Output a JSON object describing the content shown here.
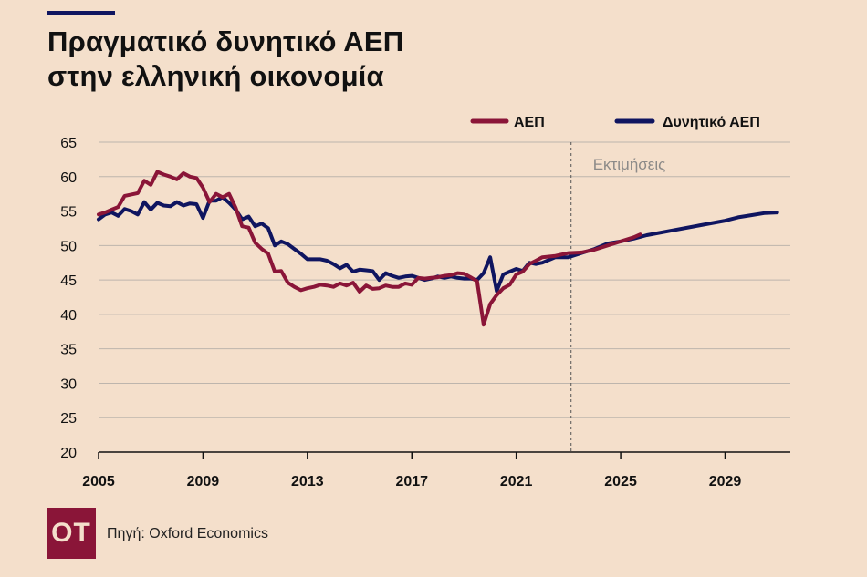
{
  "title_lines": [
    "Πραγματικό δυνητικό ΑΕΠ",
    "στην ελληνική οικονομία"
  ],
  "source": "Πηγή: Oxford Economics",
  "logo_text": "ΟΤ",
  "colors": {
    "background": "#f4dfcb",
    "gdp": "#8a1538",
    "potential": "#0f1560",
    "grid": "#bdb5ad",
    "annotation": "#8c8a88"
  },
  "chart_data": {
    "type": "line",
    "title": "Πραγματικό δυνητικό ΑΕΠ στην ελληνική οικονομία",
    "xlabel": "",
    "ylabel": "",
    "xlim": [
      2005,
      2031.5
    ],
    "ylim": [
      20,
      65
    ],
    "yticks": [
      20,
      25,
      30,
      35,
      40,
      45,
      50,
      55,
      60,
      65
    ],
    "xticks": [
      2005,
      2009,
      2013,
      2017,
      2021,
      2025,
      2029
    ],
    "grid": "horizontal",
    "legend_position": "top-right",
    "annotation": {
      "text": "Εκτιμήσεις",
      "x": 2023.1
    },
    "series": [
      {
        "name": "ΑΕΠ",
        "color": "#8a1538",
        "points": [
          [
            2005.0,
            54.5
          ],
          [
            2005.25,
            54.8
          ],
          [
            2005.5,
            55.2
          ],
          [
            2005.75,
            55.6
          ],
          [
            2006.0,
            57.2
          ],
          [
            2006.25,
            57.4
          ],
          [
            2006.5,
            57.6
          ],
          [
            2006.75,
            59.4
          ],
          [
            2007.0,
            58.8
          ],
          [
            2007.25,
            60.7
          ],
          [
            2007.5,
            60.3
          ],
          [
            2007.75,
            60.0
          ],
          [
            2008.0,
            59.6
          ],
          [
            2008.25,
            60.5
          ],
          [
            2008.5,
            60.0
          ],
          [
            2008.75,
            59.8
          ],
          [
            2009.0,
            58.4
          ],
          [
            2009.25,
            56.3
          ],
          [
            2009.5,
            57.5
          ],
          [
            2009.75,
            57.0
          ],
          [
            2010.0,
            57.5
          ],
          [
            2010.25,
            55.5
          ],
          [
            2010.5,
            52.8
          ],
          [
            2010.75,
            52.6
          ],
          [
            2011.0,
            50.4
          ],
          [
            2011.25,
            49.5
          ],
          [
            2011.5,
            48.8
          ],
          [
            2011.75,
            46.2
          ],
          [
            2012.0,
            46.3
          ],
          [
            2012.25,
            44.6
          ],
          [
            2012.5,
            44.0
          ],
          [
            2012.75,
            43.5
          ],
          [
            2013.0,
            43.8
          ],
          [
            2013.25,
            44.0
          ],
          [
            2013.5,
            44.3
          ],
          [
            2013.75,
            44.2
          ],
          [
            2014.0,
            44.0
          ],
          [
            2014.25,
            44.5
          ],
          [
            2014.5,
            44.2
          ],
          [
            2014.75,
            44.6
          ],
          [
            2015.0,
            43.3
          ],
          [
            2015.25,
            44.2
          ],
          [
            2015.5,
            43.7
          ],
          [
            2015.75,
            43.8
          ],
          [
            2016.0,
            44.2
          ],
          [
            2016.25,
            44.0
          ],
          [
            2016.5,
            44.0
          ],
          [
            2016.75,
            44.5
          ],
          [
            2017.0,
            44.3
          ],
          [
            2017.25,
            45.3
          ],
          [
            2017.5,
            45.2
          ],
          [
            2017.75,
            45.3
          ],
          [
            2018.0,
            45.4
          ],
          [
            2018.25,
            45.6
          ],
          [
            2018.5,
            45.7
          ],
          [
            2018.75,
            46.0
          ],
          [
            2019.0,
            45.9
          ],
          [
            2019.25,
            45.4
          ],
          [
            2019.5,
            44.8
          ],
          [
            2019.75,
            38.5
          ],
          [
            2020.0,
            41.5
          ],
          [
            2020.25,
            42.8
          ],
          [
            2020.5,
            43.8
          ],
          [
            2020.75,
            44.3
          ],
          [
            2021.0,
            45.8
          ],
          [
            2021.25,
            46.2
          ],
          [
            2021.5,
            47.3
          ],
          [
            2021.75,
            47.8
          ],
          [
            2022.0,
            48.3
          ],
          [
            2022.5,
            48.5
          ],
          [
            2023.0,
            48.9
          ],
          [
            2023.5,
            49.0
          ],
          [
            2024.0,
            49.4
          ],
          [
            2024.5,
            50.0
          ],
          [
            2025.0,
            50.6
          ],
          [
            2025.5,
            51.2
          ],
          [
            2025.75,
            51.6
          ]
        ]
      },
      {
        "name": "Δυνητικό ΑΕΠ",
        "color": "#0f1560",
        "points": [
          [
            2005.0,
            53.8
          ],
          [
            2005.25,
            54.5
          ],
          [
            2005.5,
            54.8
          ],
          [
            2005.75,
            54.3
          ],
          [
            2006.0,
            55.3
          ],
          [
            2006.25,
            55.0
          ],
          [
            2006.5,
            54.5
          ],
          [
            2006.75,
            56.3
          ],
          [
            2007.0,
            55.2
          ],
          [
            2007.25,
            56.2
          ],
          [
            2007.5,
            55.8
          ],
          [
            2007.75,
            55.7
          ],
          [
            2008.0,
            56.3
          ],
          [
            2008.25,
            55.8
          ],
          [
            2008.5,
            56.1
          ],
          [
            2008.75,
            56.0
          ],
          [
            2009.0,
            54.0
          ],
          [
            2009.25,
            56.5
          ],
          [
            2009.5,
            56.5
          ],
          [
            2009.75,
            57.0
          ],
          [
            2010.0,
            56.2
          ],
          [
            2010.25,
            55.2
          ],
          [
            2010.5,
            53.8
          ],
          [
            2010.75,
            54.2
          ],
          [
            2011.0,
            52.8
          ],
          [
            2011.25,
            53.2
          ],
          [
            2011.5,
            52.5
          ],
          [
            2011.75,
            50.0
          ],
          [
            2012.0,
            50.6
          ],
          [
            2012.25,
            50.2
          ],
          [
            2012.5,
            49.5
          ],
          [
            2012.75,
            48.8
          ],
          [
            2013.0,
            48.0
          ],
          [
            2013.25,
            48.0
          ],
          [
            2013.5,
            48.0
          ],
          [
            2013.75,
            47.8
          ],
          [
            2014.0,
            47.3
          ],
          [
            2014.25,
            46.7
          ],
          [
            2014.5,
            47.2
          ],
          [
            2014.75,
            46.2
          ],
          [
            2015.0,
            46.5
          ],
          [
            2015.25,
            46.4
          ],
          [
            2015.5,
            46.3
          ],
          [
            2015.75,
            45.0
          ],
          [
            2016.0,
            46.0
          ],
          [
            2016.25,
            45.6
          ],
          [
            2016.5,
            45.3
          ],
          [
            2016.75,
            45.5
          ],
          [
            2017.0,
            45.6
          ],
          [
            2017.25,
            45.3
          ],
          [
            2017.5,
            45.0
          ],
          [
            2017.75,
            45.2
          ],
          [
            2018.0,
            45.5
          ],
          [
            2018.25,
            45.3
          ],
          [
            2018.5,
            45.5
          ],
          [
            2018.75,
            45.3
          ],
          [
            2019.0,
            45.2
          ],
          [
            2019.25,
            45.2
          ],
          [
            2019.5,
            45.0
          ],
          [
            2019.75,
            46.0
          ],
          [
            2020.0,
            48.3
          ],
          [
            2020.25,
            43.4
          ],
          [
            2020.5,
            45.8
          ],
          [
            2020.75,
            46.2
          ],
          [
            2021.0,
            46.6
          ],
          [
            2021.25,
            46.3
          ],
          [
            2021.5,
            47.5
          ],
          [
            2021.75,
            47.3
          ],
          [
            2022.0,
            47.5
          ],
          [
            2022.5,
            48.3
          ],
          [
            2023.0,
            48.3
          ],
          [
            2023.5,
            48.9
          ],
          [
            2024.0,
            49.5
          ],
          [
            2024.5,
            50.3
          ],
          [
            2025.0,
            50.6
          ],
          [
            2025.5,
            51.0
          ],
          [
            2026.0,
            51.5
          ],
          [
            2027.0,
            52.2
          ],
          [
            2028.0,
            52.9
          ],
          [
            2029.0,
            53.6
          ],
          [
            2029.5,
            54.1
          ],
          [
            2030.0,
            54.4
          ],
          [
            2030.5,
            54.7
          ],
          [
            2031.0,
            54.8
          ]
        ]
      }
    ]
  }
}
